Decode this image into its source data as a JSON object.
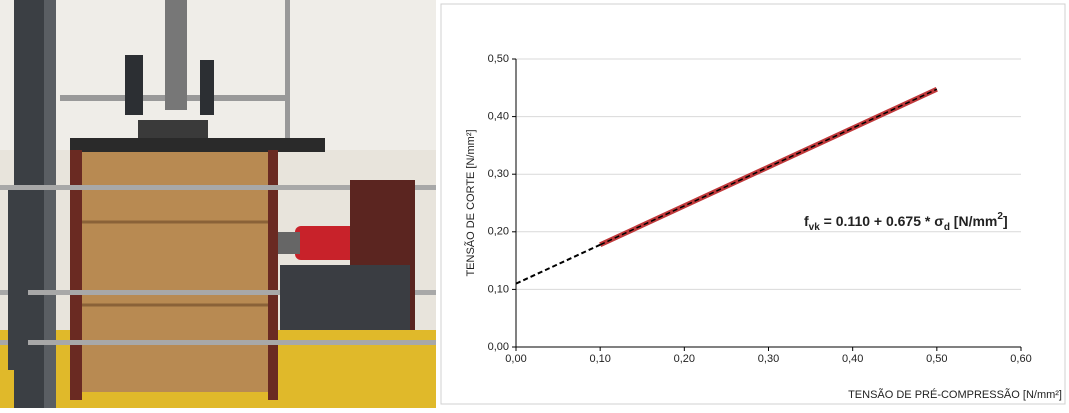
{
  "chart_data": {
    "type": "line",
    "ylabel": "TENSÃO DE CORTE [N/mm²]",
    "xlabel": "TENSÃO DE PRÉ-COMPRESSÃO [N/mm²]",
    "annotation": [
      "f",
      "vk",
      " = 0.110 + 0.675 * σ",
      "d",
      " [N/mm",
      "2",
      "]"
    ],
    "xlim": [
      0,
      0.6
    ],
    "ylim": [
      0,
      0.5
    ],
    "xticks": [
      {
        "value": 0,
        "label": "0,00"
      },
      {
        "value": 0.1,
        "label": "0,10"
      },
      {
        "value": 0.2,
        "label": "0,20"
      },
      {
        "value": 0.3,
        "label": "0,30"
      },
      {
        "value": 0.4,
        "label": "0,40"
      },
      {
        "value": 0.5,
        "label": "0,50"
      },
      {
        "value": 0.6,
        "label": "0,60"
      }
    ],
    "yticks": [
      {
        "value": 0,
        "label": "0,00"
      },
      {
        "value": 0.1,
        "label": "0,10"
      },
      {
        "value": 0.2,
        "label": "0,20"
      },
      {
        "value": 0.3,
        "label": "0,30"
      },
      {
        "value": 0.4,
        "label": "0,40"
      },
      {
        "value": 0.5,
        "label": "0,50"
      }
    ],
    "grid": true,
    "series": [
      {
        "color": "#c0393b",
        "x": [
          0.1,
          0.5
        ],
        "values": [
          0.1775,
          0.4475
        ]
      },
      {
        "color": "#000000",
        "x": [
          0,
          0.1
        ],
        "values": [
          0.11,
          0.1775
        ]
      }
    ]
  }
}
